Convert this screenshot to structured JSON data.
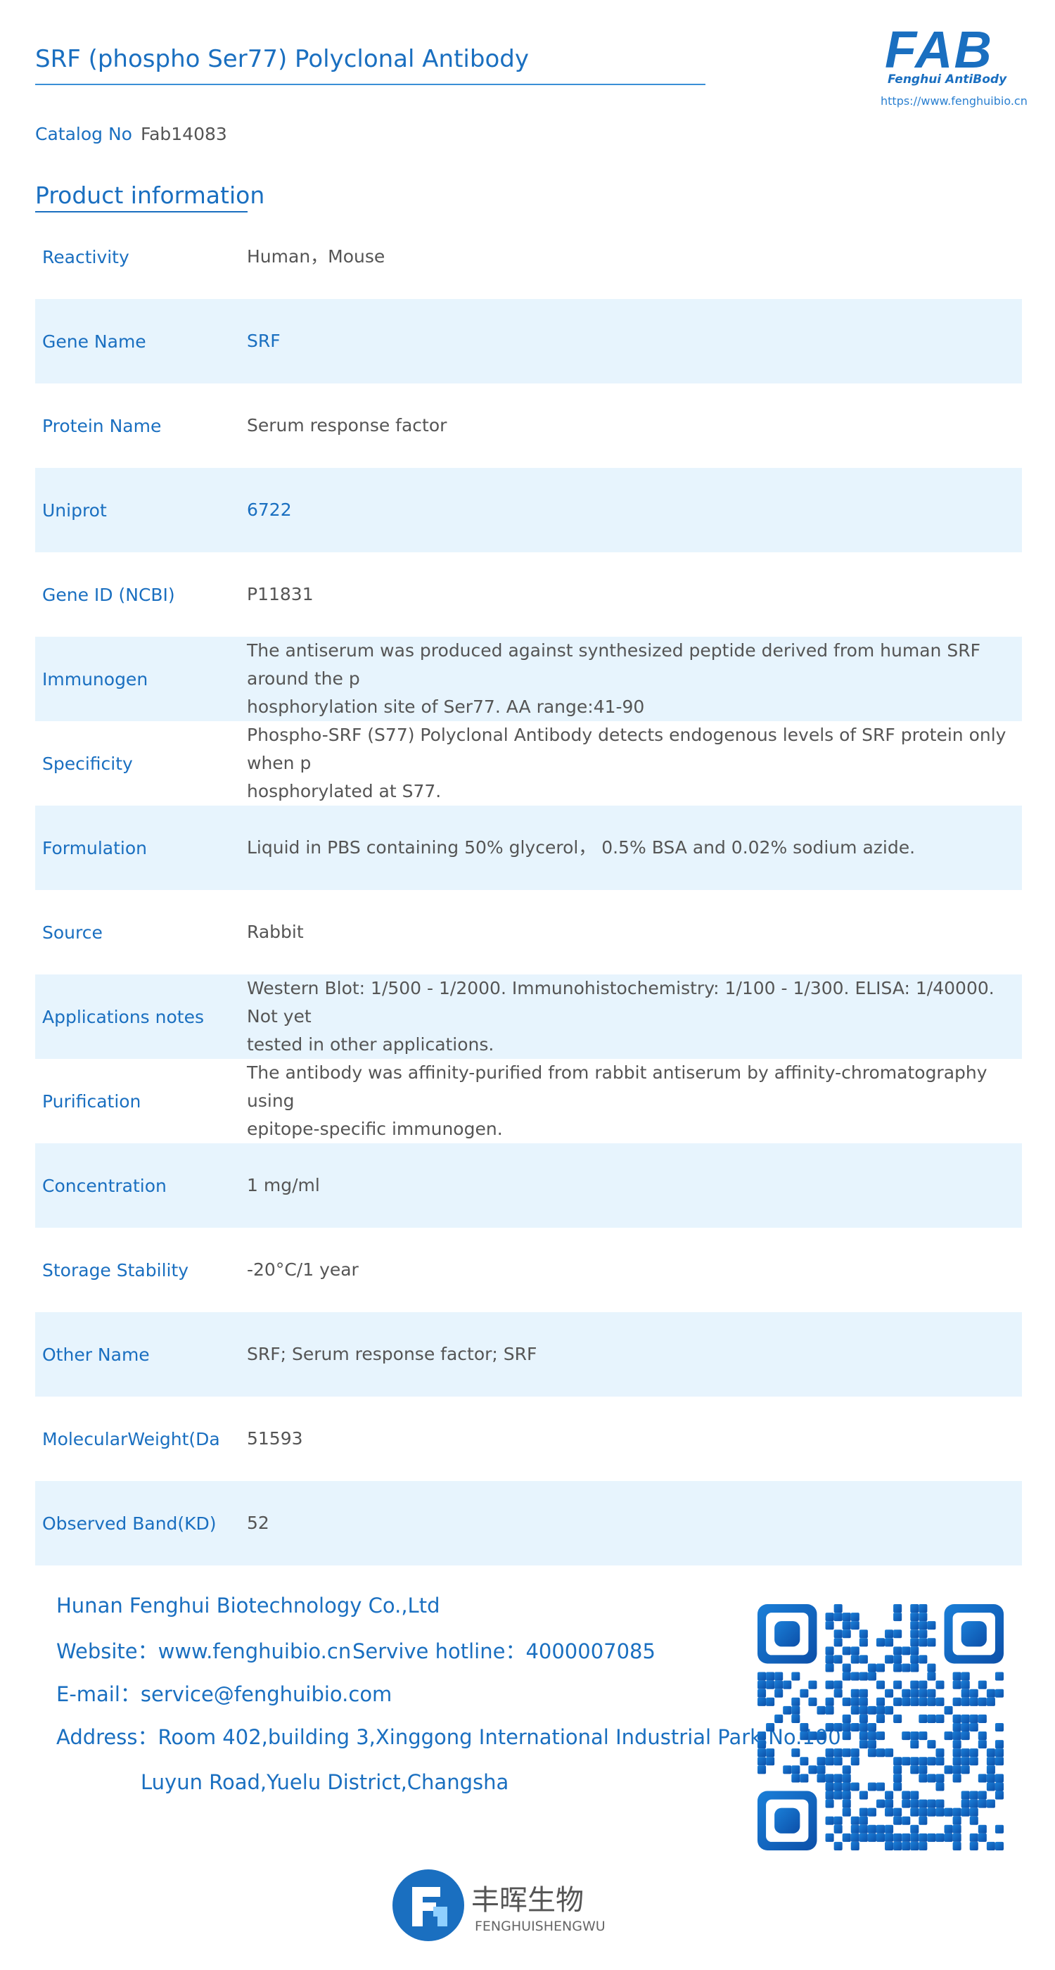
{
  "header": {
    "title": "SRF (phospho Ser77) Polyclonal Antibody",
    "logo": {
      "mark": "FAB",
      "tagline": "Fenghui AntiBody",
      "url": "https://www.fenghuibio.cn"
    },
    "catalog_label": "Catalog No",
    "catalog_value": "Fab14083"
  },
  "section_title": "Product information",
  "table": {
    "rows": [
      [
        "Reactivity",
        "Human，Mouse"
      ],
      [
        "Gene Name",
        "SRF"
      ],
      [
        "Protein Name",
        "Serum response factor"
      ],
      [
        "Uniprot",
        "6722"
      ],
      [
        "Gene ID (NCBI)",
        "P11831"
      ],
      [
        "Immunogen",
        "The antiserum was produced against synthesized peptide derived from human SRF around the p\nhosphorylation site of Ser77. AA range:41-90"
      ],
      [
        "Specificity",
        "Phospho-SRF (S77) Polyclonal Antibody detects endogenous levels of SRF protein only when p\nhosphorylated at S77."
      ],
      [
        "Formulation",
        "Liquid in PBS containing 50% glycerol， 0.5% BSA and 0.02% sodium azide."
      ],
      [
        "Source",
        "Rabbit"
      ],
      [
        "Applications notes",
        "Western Blot: 1/500 - 1/2000. Immunohistochemistry: 1/100 - 1/300. ELISA: 1/40000. Not yet\n tested in other applications."
      ],
      [
        "Purification",
        "The antibody was affinity-purified from rabbit antiserum by affinity-chromatography using\nepitope-specific immunogen."
      ],
      [
        "Concentration",
        "1 mg/ml"
      ],
      [
        "Storage Stability",
        "-20°C/1 year"
      ],
      [
        "Other Name",
        "SRF; Serum response factor; SRF"
      ],
      [
        "MolecularWeight(Da",
        "51593"
      ],
      [
        "Observed Band(KD)",
        "52"
      ]
    ]
  },
  "footer": {
    "company": "Hunan Fenghui Biotechnology Co.,Ltd",
    "website": "Website：www.fenghuibio.cn",
    "hotline": "Servive hotline：4000007085",
    "email": "E-mail：service@fenghuibio.com",
    "address": [
      "Address：Room 402,building 3,Xinggong International Industrial Park,No.100",
      "Luyun Road,Yuelu District,Changsha"
    ],
    "brand_cn": "丰晖生物",
    "brand_pinyin": "FENGHUISHENGWU"
  }
}
